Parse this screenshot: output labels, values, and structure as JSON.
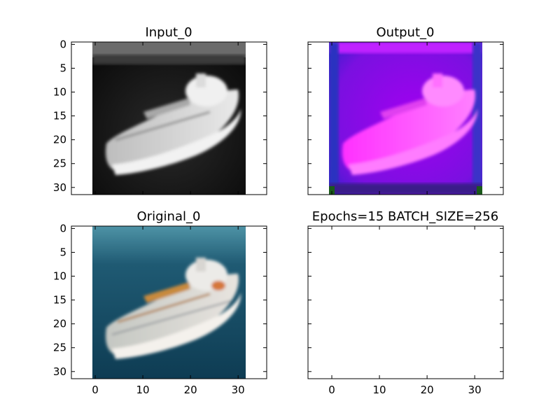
{
  "chart_data": [
    {
      "type": "image",
      "title": "Input_0",
      "yticks": [
        0,
        5,
        10,
        15,
        20,
        25,
        30
      ],
      "xticks": [],
      "xlim": [
        -5,
        36
      ],
      "ylim": [
        31.5,
        -0.5
      ],
      "image": {
        "extent": [
          -0.5,
          31.5,
          31.5,
          -0.5
        ],
        "colormap": "grayscale",
        "content": "ship on dark water"
      }
    },
    {
      "type": "image",
      "title": "Output_0",
      "yticks": [],
      "xticks": [],
      "xlim": [
        -5,
        36
      ],
      "ylim": [
        31.5,
        -0.5
      ],
      "image": {
        "extent": [
          -0.5,
          31.5,
          31.5,
          -0.5
        ],
        "colormap": "magenta-purple",
        "content": "reconstructed ship"
      }
    },
    {
      "type": "image",
      "title": "Original_0",
      "yticks": [
        0,
        5,
        10,
        15,
        20,
        25,
        30
      ],
      "xticks": [
        0,
        10,
        20,
        30
      ],
      "xlim": [
        -5,
        36
      ],
      "ylim": [
        31.5,
        -0.5
      ],
      "image": {
        "extent": [
          -0.5,
          31.5,
          31.5,
          -0.5
        ],
        "colormap": "rgb",
        "content": "ship on blue water"
      }
    },
    {
      "type": "empty",
      "title": "Epochs=15 BATCH_SIZE=256",
      "yticks": [],
      "xticks": [
        0,
        10,
        20,
        30
      ],
      "xlim": [
        -5,
        36
      ],
      "ylim": [
        31.5,
        -0.5
      ]
    }
  ]
}
